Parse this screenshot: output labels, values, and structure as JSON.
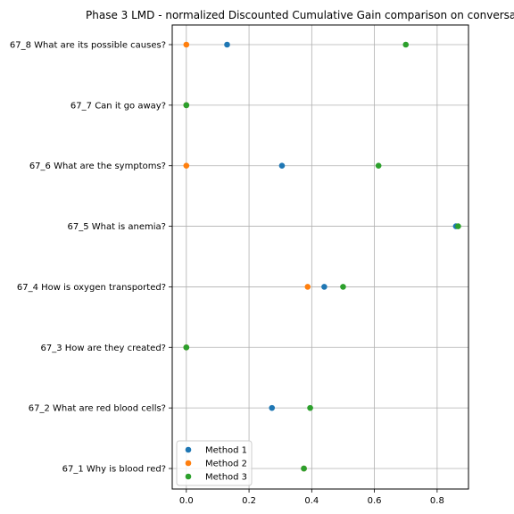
{
  "chart_data": {
    "type": "scatter",
    "title": "Phase 3 LMD - normalized Discounted Cumulative Gain comparison on conversa",
    "xlabel": "",
    "ylabel": "",
    "xlim": [
      -0.045,
      0.9
    ],
    "x_ticks": [
      "0.0",
      "0.2",
      "0.4",
      "0.6",
      "0.8"
    ],
    "x_tick_values": [
      0.0,
      0.2,
      0.4,
      0.6,
      0.8
    ],
    "grid": true,
    "legend_position": "lower-left",
    "categories": [
      "67_1 Why is blood red?",
      "67_2 What are red blood cells?",
      "67_3 How are they created?",
      "67_4 How is oxygen transported?",
      "67_5 What is anemia?",
      "67_6 What are the symptoms?",
      "67_7 Can it go away?",
      "67_8 What are its possible causes?"
    ],
    "series": [
      {
        "name": "Method 1",
        "color": "#1f77b4",
        "values": [
          0.375,
          0.273,
          0.0,
          0.44,
          0.86,
          0.305,
          0.0,
          0.13
        ]
      },
      {
        "name": "Method 2",
        "color": "#ff7f0e",
        "values": [
          0.375,
          null,
          0.0,
          0.387,
          null,
          0.0,
          0.0,
          0.0
        ]
      },
      {
        "name": "Method 3",
        "color": "#2ca02c",
        "values": [
          0.375,
          0.395,
          0.0,
          0.5,
          0.867,
          0.613,
          0.0,
          0.7
        ]
      }
    ]
  }
}
